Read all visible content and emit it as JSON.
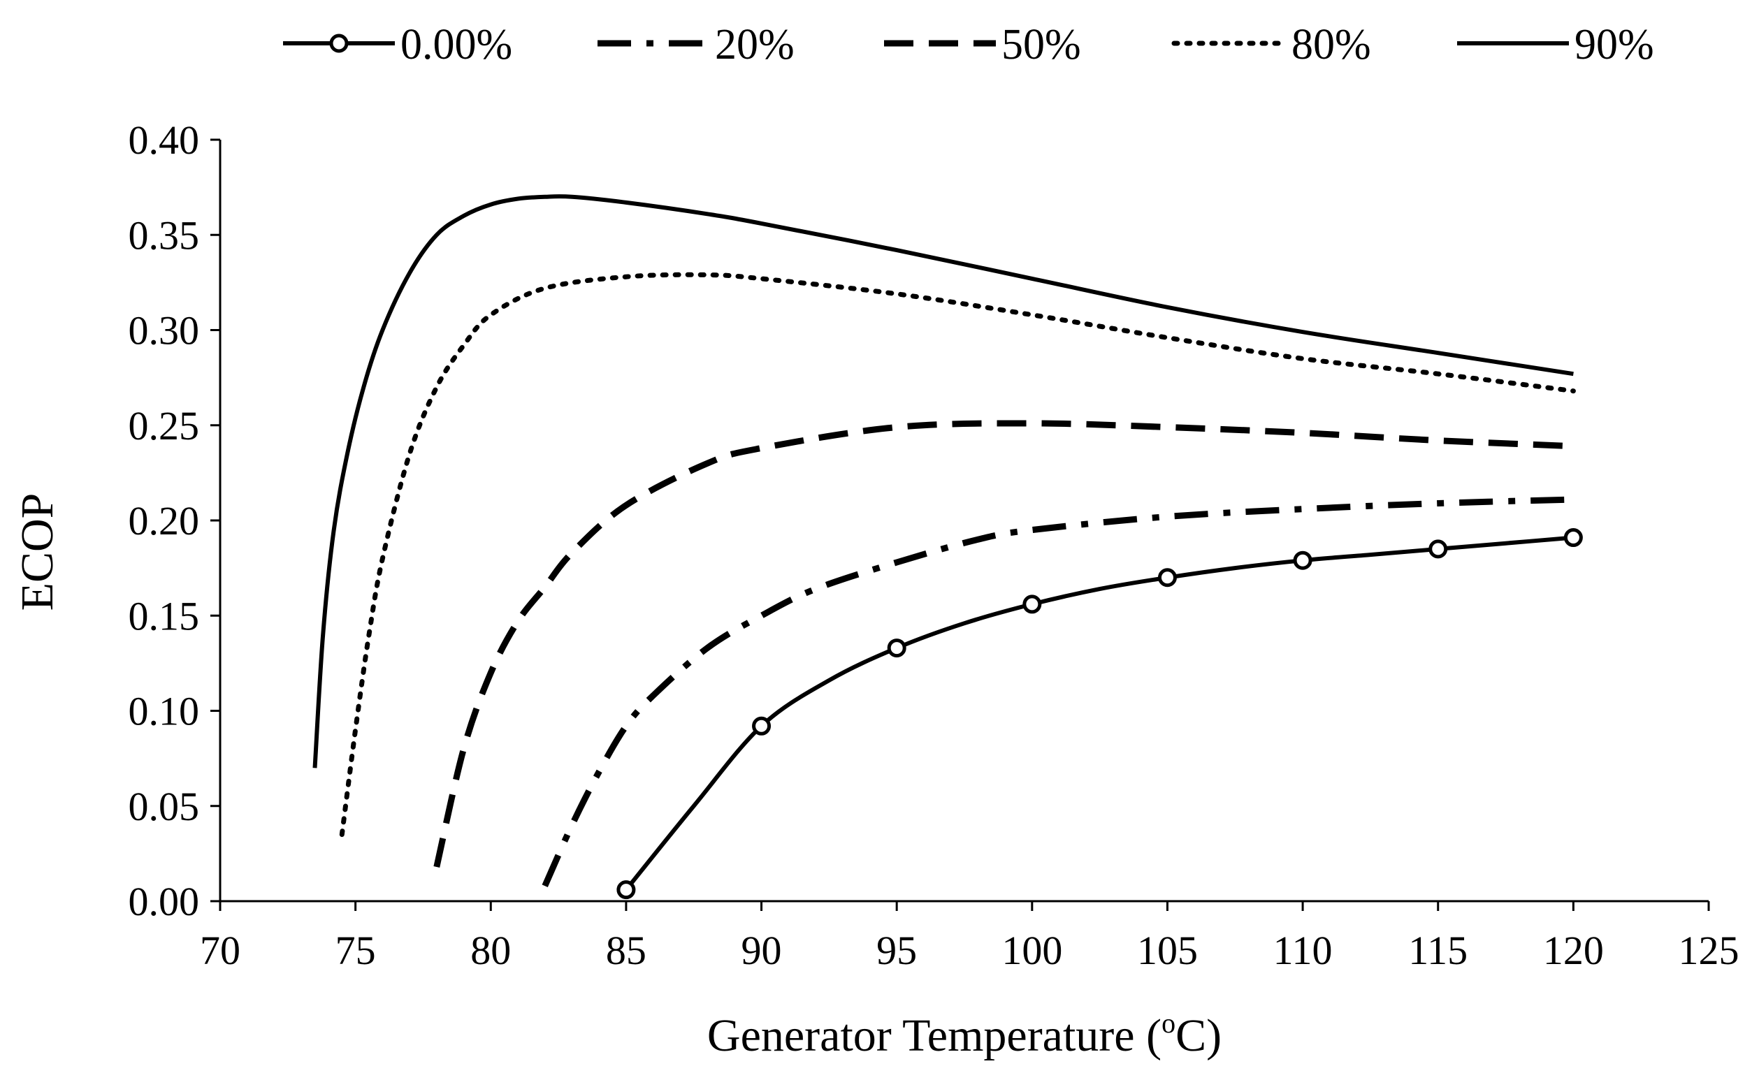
{
  "chart_data": {
    "type": "line",
    "title": "",
    "xlabel": "Generator Temperature (°C)",
    "xlabel_main": "Generator Temperature (",
    "xlabel_sup": "o",
    "xlabel_tail": "C)",
    "ylabel": "ECOP",
    "xlim": [
      70,
      125
    ],
    "ylim": [
      0.0,
      0.4
    ],
    "x_ticks": [
      "70",
      "75",
      "80",
      "85",
      "90",
      "95",
      "100",
      "105",
      "110",
      "115",
      "120",
      "125"
    ],
    "y_ticks": [
      "0.00",
      "0.05",
      "0.10",
      "0.15",
      "0.20",
      "0.25",
      "0.30",
      "0.35",
      "0.40"
    ],
    "grid": false,
    "legend_position": "top",
    "series": [
      {
        "name": "0.00%",
        "style": "solid-circle",
        "color": "#000000",
        "x": [
          85,
          87.5,
          90,
          92.5,
          95,
          97.5,
          100,
          102.5,
          105,
          107.5,
          110,
          112.5,
          115,
          117.5,
          120
        ],
        "y": [
          0.006,
          0.05,
          0.092,
          0.116,
          0.133,
          0.146,
          0.156,
          0.164,
          0.17,
          0.175,
          0.179,
          0.182,
          0.185,
          0.188,
          0.191
        ],
        "markers_x": [
          85,
          90,
          95,
          100,
          105,
          110,
          115,
          120
        ],
        "markers_y": [
          0.006,
          0.092,
          0.133,
          0.156,
          0.17,
          0.179,
          0.185,
          0.191
        ]
      },
      {
        "name": "20%",
        "style": "dash-dot",
        "color": "#000000",
        "x": [
          82,
          83,
          84,
          85,
          86,
          88,
          90,
          92,
          95,
          98,
          100,
          105,
          110,
          115,
          120
        ],
        "y": [
          0.008,
          0.04,
          0.068,
          0.092,
          0.108,
          0.133,
          0.15,
          0.164,
          0.178,
          0.19,
          0.195,
          0.202,
          0.206,
          0.209,
          0.211
        ],
        "markers_x": [],
        "markers_y": []
      },
      {
        "name": "50%",
        "style": "dashed",
        "color": "#000000",
        "x": [
          78,
          79,
          80,
          81,
          82,
          83,
          85,
          88,
          90,
          95,
          100,
          105,
          110,
          115,
          120
        ],
        "y": [
          0.018,
          0.08,
          0.12,
          0.147,
          0.165,
          0.183,
          0.208,
          0.23,
          0.238,
          0.249,
          0.251,
          0.249,
          0.246,
          0.242,
          0.239
        ],
        "markers_x": [],
        "markers_y": []
      },
      {
        "name": "80%",
        "style": "dotted",
        "color": "#000000",
        "x": [
          74.5,
          75,
          75.5,
          76,
          77,
          78,
          79,
          80,
          82,
          85,
          88,
          90,
          95,
          100,
          105,
          110,
          115,
          120
        ],
        "y": [
          0.035,
          0.09,
          0.14,
          0.18,
          0.235,
          0.27,
          0.292,
          0.308,
          0.322,
          0.328,
          0.329,
          0.327,
          0.319,
          0.308,
          0.296,
          0.285,
          0.277,
          0.268
        ],
        "markers_x": [],
        "markers_y": []
      },
      {
        "name": "90%",
        "style": "solid",
        "color": "#000000",
        "x": [
          73.5,
          73.8,
          74.2,
          74.7,
          75.3,
          76,
          77,
          78,
          79,
          80,
          81,
          82,
          83,
          85,
          88,
          90,
          95,
          100,
          105,
          110,
          115,
          120
        ],
        "y": [
          0.07,
          0.14,
          0.195,
          0.235,
          0.27,
          0.3,
          0.33,
          0.35,
          0.36,
          0.366,
          0.369,
          0.37,
          0.37,
          0.367,
          0.361,
          0.356,
          0.342,
          0.327,
          0.312,
          0.299,
          0.288,
          0.277
        ],
        "markers_x": [],
        "markers_y": []
      }
    ]
  }
}
